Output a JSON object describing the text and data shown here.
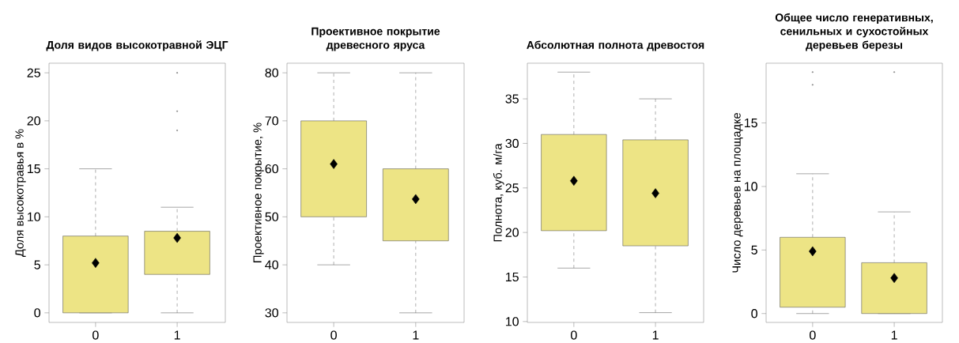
{
  "chart_data": [
    {
      "type": "box",
      "title": "Доля видов высокотравной ЭЦГ",
      "ylabel": "Доля высокотравья в %",
      "categories": [
        "0",
        "1"
      ],
      "ylim": [
        -1,
        26
      ],
      "yticks": [
        0,
        5,
        10,
        15,
        20,
        25
      ],
      "series": [
        {
          "color": "#ede485",
          "boxes": [
            {
              "low": 0,
              "q1": 0,
              "median": null,
              "q3": 8,
              "high": 15,
              "mean": 5.2
            },
            {
              "low": 0,
              "q1": 4,
              "median": null,
              "q3": 8.5,
              "high": 11,
              "mean": 7.8,
              "outliers": [
                19,
                21,
                25
              ]
            }
          ]
        }
      ]
    },
    {
      "type": "box",
      "title": "Проективное покрытие древесного яруса",
      "ylabel": "Проективное покрытие, %",
      "categories": [
        "0",
        "1"
      ],
      "ylim": [
        28,
        82
      ],
      "yticks": [
        30,
        40,
        50,
        60,
        70,
        80
      ],
      "series": [
        {
          "color": "#ede485",
          "boxes": [
            {
              "low": 40,
              "q1": 50,
              "median": null,
              "q3": 70,
              "high": 80,
              "mean": 61
            },
            {
              "low": 30,
              "q1": 45,
              "median": null,
              "q3": 60,
              "high": 80,
              "mean": 53.7
            }
          ]
        }
      ]
    },
    {
      "type": "box",
      "title": "Абсолютная полнота древостоя",
      "ylabel": "Полнота, куб. м/га",
      "categories": [
        "0",
        "1"
      ],
      "ylim": [
        9.9,
        39
      ],
      "yticks": [
        10,
        15,
        20,
        25,
        30,
        35
      ],
      "series": [
        {
          "color": "#ede485",
          "boxes": [
            {
              "low": 16,
              "q1": 20.2,
              "median": null,
              "q3": 31,
              "high": 38,
              "mean": 25.8
            },
            {
              "low": 11,
              "q1": 18.5,
              "median": null,
              "q3": 30.4,
              "high": 35,
              "mean": 24.4
            }
          ]
        }
      ]
    },
    {
      "type": "box",
      "title": "Общее число генеративных, сенильных и сухостойных деревьев березы",
      "ylabel": "Число деревьев на площадке",
      "categories": [
        "0",
        "1"
      ],
      "ylim": [
        -0.7,
        19.7
      ],
      "yticks": [
        0,
        5,
        10,
        15
      ],
      "series": [
        {
          "color": "#ede485",
          "boxes": [
            {
              "low": 0,
              "q1": 0.5,
              "median": null,
              "q3": 6,
              "high": 11,
              "mean": 4.9,
              "outliers": [
                18,
                19
              ]
            },
            {
              "low": 0,
              "q1": 0,
              "median": null,
              "q3": 4,
              "high": 8,
              "mean": 2.8,
              "outliers": [
                19
              ]
            }
          ]
        }
      ]
    }
  ]
}
